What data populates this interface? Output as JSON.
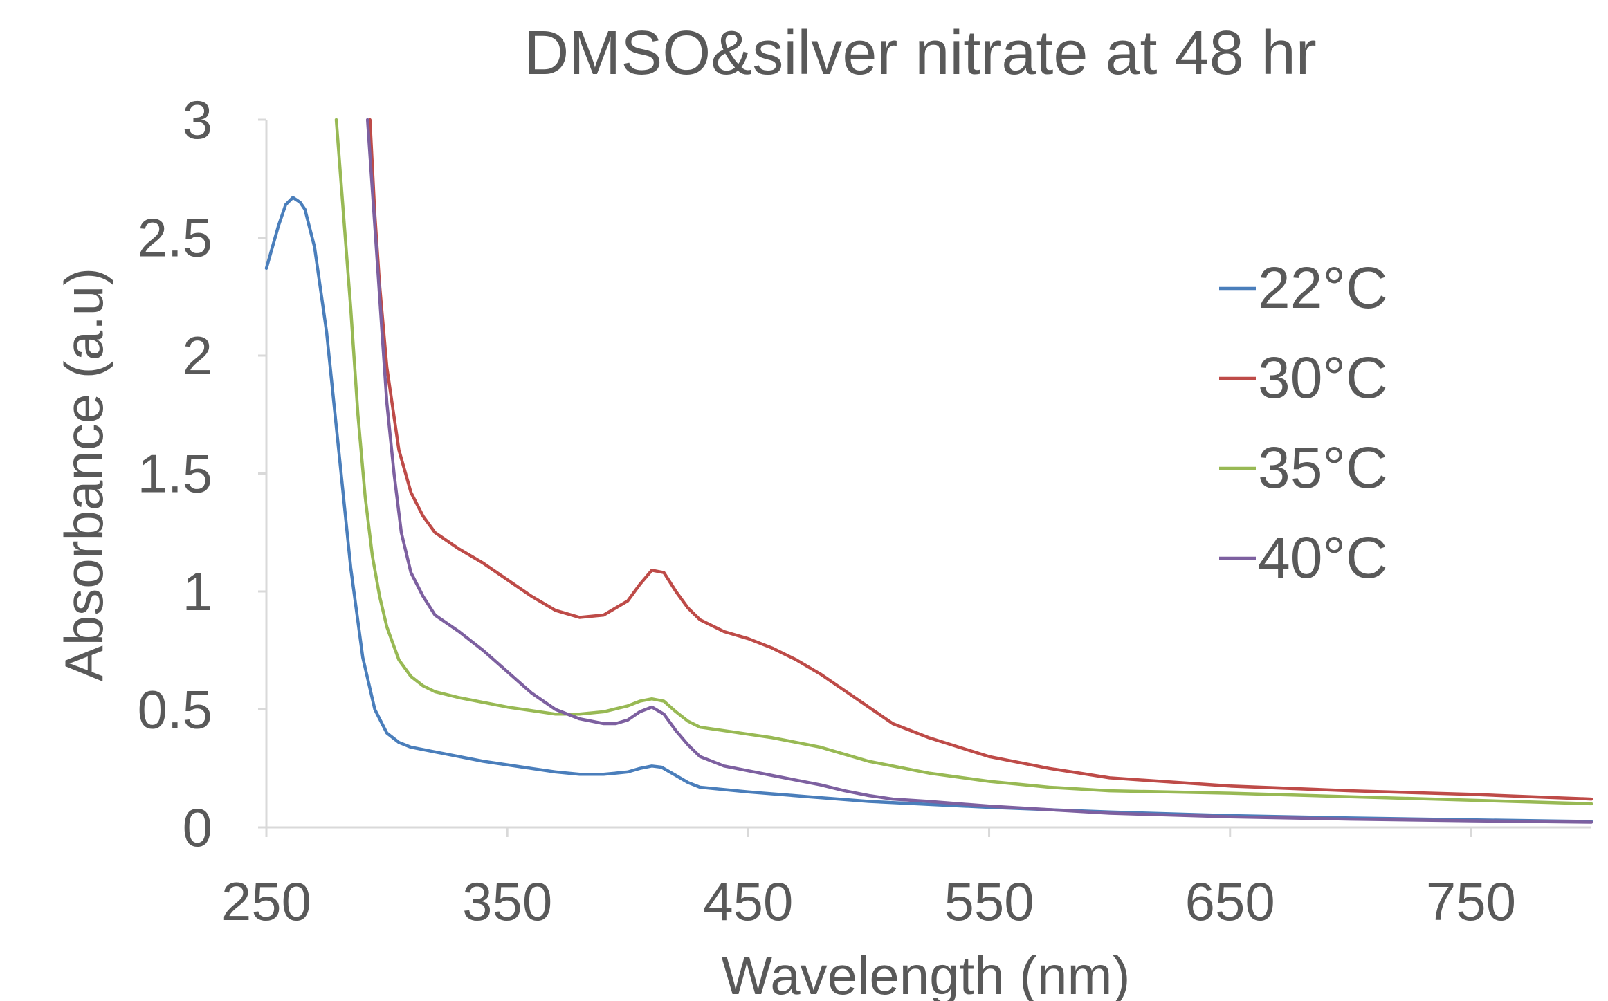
{
  "chart_data": {
    "type": "line",
    "title": "DMSO&silver nitrate at 48 hr",
    "xlabel": "Wavelength (nm)",
    "ylabel": "Absorbance (a.u)",
    "xlim": [
      250,
      800
    ],
    "ylim": [
      0,
      3
    ],
    "xticks": [
      "250",
      "350",
      "450",
      "550",
      "650",
      "750"
    ],
    "yticks": [
      "0",
      "0.5",
      "1",
      "1.5",
      "2",
      "2.5",
      "3"
    ],
    "grid": false,
    "legend_position": "right",
    "series": [
      {
        "name": "22°C",
        "color": "#4a7ebb",
        "points": [
          [
            250,
            2.37
          ],
          [
            255,
            2.55
          ],
          [
            258,
            2.64
          ],
          [
            261,
            2.67
          ],
          [
            264,
            2.65
          ],
          [
            266,
            2.62
          ],
          [
            270,
            2.46
          ],
          [
            275,
            2.1
          ],
          [
            280,
            1.6
          ],
          [
            285,
            1.1
          ],
          [
            290,
            0.72
          ],
          [
            295,
            0.5
          ],
          [
            300,
            0.4
          ],
          [
            305,
            0.36
          ],
          [
            310,
            0.34
          ],
          [
            320,
            0.32
          ],
          [
            330,
            0.3
          ],
          [
            340,
            0.28
          ],
          [
            350,
            0.265
          ],
          [
            360,
            0.25
          ],
          [
            370,
            0.235
          ],
          [
            380,
            0.225
          ],
          [
            390,
            0.225
          ],
          [
            400,
            0.235
          ],
          [
            405,
            0.25
          ],
          [
            410,
            0.26
          ],
          [
            414,
            0.255
          ],
          [
            420,
            0.22
          ],
          [
            425,
            0.19
          ],
          [
            430,
            0.17
          ],
          [
            440,
            0.16
          ],
          [
            450,
            0.15
          ],
          [
            475,
            0.13
          ],
          [
            500,
            0.11
          ],
          [
            550,
            0.085
          ],
          [
            600,
            0.065
          ],
          [
            650,
            0.05
          ],
          [
            700,
            0.04
          ],
          [
            750,
            0.032
          ],
          [
            800,
            0.025
          ]
        ]
      },
      {
        "name": "30°C",
        "color": "#be4b48",
        "points": [
          [
            293,
            3.0
          ],
          [
            295,
            2.6
          ],
          [
            297,
            2.3
          ],
          [
            300,
            1.95
          ],
          [
            305,
            1.6
          ],
          [
            310,
            1.42
          ],
          [
            315,
            1.32
          ],
          [
            320,
            1.25
          ],
          [
            330,
            1.18
          ],
          [
            340,
            1.12
          ],
          [
            350,
            1.05
          ],
          [
            360,
            0.98
          ],
          [
            370,
            0.92
          ],
          [
            380,
            0.89
          ],
          [
            390,
            0.9
          ],
          [
            400,
            0.96
          ],
          [
            405,
            1.03
          ],
          [
            410,
            1.09
          ],
          [
            415,
            1.08
          ],
          [
            420,
            1.0
          ],
          [
            425,
            0.93
          ],
          [
            430,
            0.88
          ],
          [
            440,
            0.83
          ],
          [
            450,
            0.8
          ],
          [
            460,
            0.76
          ],
          [
            470,
            0.71
          ],
          [
            480,
            0.65
          ],
          [
            490,
            0.58
          ],
          [
            500,
            0.51
          ],
          [
            510,
            0.44
          ],
          [
            525,
            0.38
          ],
          [
            550,
            0.3
          ],
          [
            575,
            0.25
          ],
          [
            600,
            0.21
          ],
          [
            650,
            0.175
          ],
          [
            700,
            0.155
          ],
          [
            750,
            0.14
          ],
          [
            800,
            0.12
          ]
        ]
      },
      {
        "name": "35°C",
        "color": "#98b954",
        "points": [
          [
            279,
            3.0
          ],
          [
            282,
            2.6
          ],
          [
            285,
            2.2
          ],
          [
            288,
            1.75
          ],
          [
            291,
            1.4
          ],
          [
            294,
            1.15
          ],
          [
            297,
            0.98
          ],
          [
            300,
            0.85
          ],
          [
            305,
            0.71
          ],
          [
            310,
            0.64
          ],
          [
            315,
            0.6
          ],
          [
            320,
            0.575
          ],
          [
            330,
            0.55
          ],
          [
            340,
            0.53
          ],
          [
            350,
            0.51
          ],
          [
            360,
            0.495
          ],
          [
            370,
            0.48
          ],
          [
            380,
            0.48
          ],
          [
            390,
            0.49
          ],
          [
            400,
            0.515
          ],
          [
            405,
            0.535
          ],
          [
            410,
            0.545
          ],
          [
            415,
            0.535
          ],
          [
            420,
            0.49
          ],
          [
            425,
            0.45
          ],
          [
            430,
            0.425
          ],
          [
            440,
            0.41
          ],
          [
            450,
            0.395
          ],
          [
            460,
            0.38
          ],
          [
            470,
            0.36
          ],
          [
            480,
            0.34
          ],
          [
            490,
            0.31
          ],
          [
            500,
            0.28
          ],
          [
            525,
            0.23
          ],
          [
            550,
            0.195
          ],
          [
            575,
            0.17
          ],
          [
            600,
            0.155
          ],
          [
            650,
            0.145
          ],
          [
            700,
            0.13
          ],
          [
            750,
            0.115
          ],
          [
            800,
            0.1
          ]
        ]
      },
      {
        "name": "40°C",
        "color": "#7d60a0",
        "points": [
          [
            292,
            3.0
          ],
          [
            294,
            2.7
          ],
          [
            296,
            2.4
          ],
          [
            298,
            2.1
          ],
          [
            300,
            1.8
          ],
          [
            303,
            1.5
          ],
          [
            306,
            1.25
          ],
          [
            310,
            1.08
          ],
          [
            315,
            0.98
          ],
          [
            320,
            0.9
          ],
          [
            330,
            0.83
          ],
          [
            340,
            0.75
          ],
          [
            350,
            0.66
          ],
          [
            360,
            0.57
          ],
          [
            370,
            0.5
          ],
          [
            380,
            0.46
          ],
          [
            390,
            0.44
          ],
          [
            395,
            0.44
          ],
          [
            400,
            0.455
          ],
          [
            405,
            0.49
          ],
          [
            410,
            0.51
          ],
          [
            415,
            0.48
          ],
          [
            420,
            0.41
          ],
          [
            425,
            0.35
          ],
          [
            430,
            0.3
          ],
          [
            440,
            0.26
          ],
          [
            450,
            0.24
          ],
          [
            460,
            0.22
          ],
          [
            470,
            0.2
          ],
          [
            480,
            0.18
          ],
          [
            490,
            0.155
          ],
          [
            500,
            0.135
          ],
          [
            510,
            0.12
          ],
          [
            525,
            0.11
          ],
          [
            550,
            0.09
          ],
          [
            575,
            0.075
          ],
          [
            600,
            0.06
          ],
          [
            650,
            0.045
          ],
          [
            700,
            0.035
          ],
          [
            750,
            0.028
          ],
          [
            800,
            0.022
          ]
        ]
      }
    ]
  }
}
